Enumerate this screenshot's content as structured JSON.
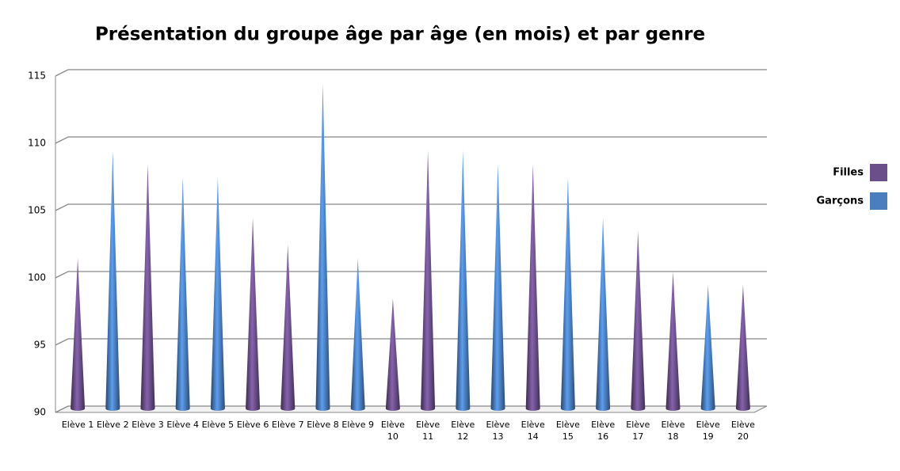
{
  "chart_data": {
    "type": "cone",
    "title": "Présentation du groupe âge par âge (en mois) et par genre",
    "categories": [
      "Elève 1",
      "Elève 2",
      "Elève 3",
      "Elève 4",
      "Elève 5",
      "Elève 6",
      "Elève 7",
      "Elève 8",
      "Elève 9",
      "Elève 10",
      "Elève 11",
      "Elève 12",
      "Elève 13",
      "Elève 14",
      "Elève 15",
      "Elève 16",
      "Elève 17",
      "Elève 18",
      "Elève 19",
      "Elève 20"
    ],
    "series": [
      {
        "name": "Filles",
        "color": "#6b4f8a",
        "values": [
          101,
          null,
          108,
          null,
          null,
          104,
          102,
          null,
          null,
          98,
          109,
          null,
          null,
          108,
          null,
          null,
          103,
          100,
          null,
          99
        ]
      },
      {
        "name": "Garçons",
        "color": "#4a7ebf",
        "values": [
          null,
          109,
          null,
          107,
          107,
          null,
          null,
          114,
          101,
          null,
          null,
          109,
          108,
          null,
          107,
          104,
          null,
          null,
          99,
          null
        ]
      }
    ],
    "ylim": [
      90,
      115
    ],
    "yticks": [
      90,
      95,
      100,
      105,
      110,
      115
    ],
    "grid": true,
    "legend": "right"
  }
}
